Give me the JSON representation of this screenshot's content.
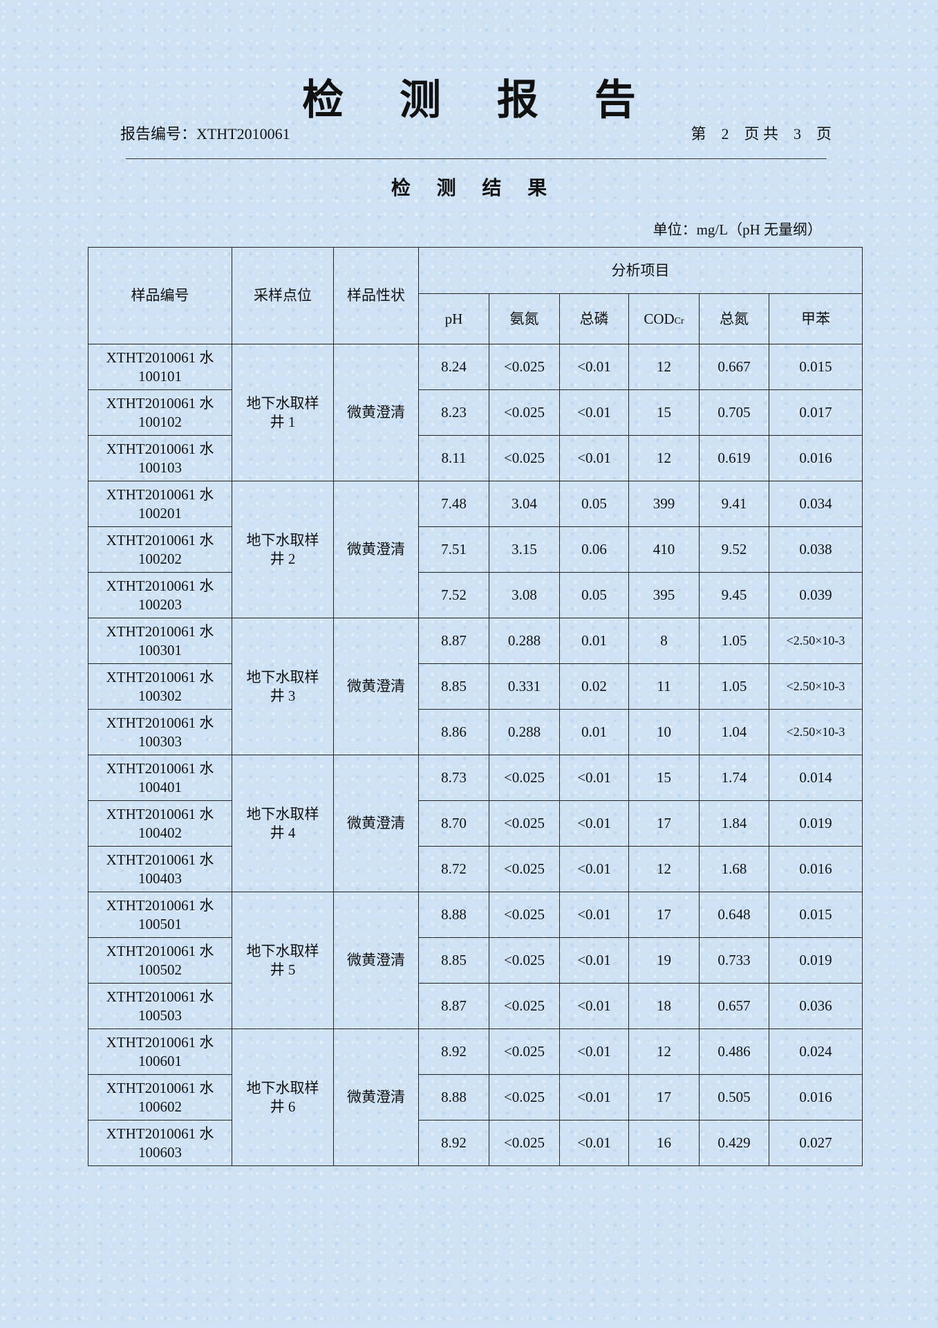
{
  "title": "检 测 报 告",
  "report_no_label": "报告编号：XTHT2010061",
  "page_info": "第　2　页 共　3　页",
  "section_title": "检 测 结 果",
  "unit": "单位：mg/L（pH 无量纲）",
  "table": {
    "headers": {
      "sample_id": "样品编号",
      "location": "采样点位",
      "appearance": "样品性状",
      "analysis": "分析项目",
      "items": [
        "pH",
        "氨氮",
        "总磷",
        "COD",
        "总氮",
        "甲苯"
      ],
      "cod_subscript": "Cr"
    },
    "groups": [
      {
        "location": "地下水取样井 1",
        "appearance": "微黄澄清",
        "rows": [
          {
            "id": "XTHT2010061 水 100101",
            "v": [
              "8.24",
              "<0.025",
              "<0.01",
              "12",
              "0.667",
              "0.015"
            ]
          },
          {
            "id": "XTHT2010061 水 100102",
            "v": [
              "8.23",
              "<0.025",
              "<0.01",
              "15",
              "0.705",
              "0.017"
            ]
          },
          {
            "id": "XTHT2010061 水 100103",
            "v": [
              "8.11",
              "<0.025",
              "<0.01",
              "12",
              "0.619",
              "0.016"
            ]
          }
        ]
      },
      {
        "location": "地下水取样井 2",
        "appearance": "微黄澄清",
        "rows": [
          {
            "id": "XTHT2010061 水 100201",
            "v": [
              "7.48",
              "3.04",
              "0.05",
              "399",
              "9.41",
              "0.034"
            ]
          },
          {
            "id": "XTHT2010061 水 100202",
            "v": [
              "7.51",
              "3.15",
              "0.06",
              "410",
              "9.52",
              "0.038"
            ]
          },
          {
            "id": "XTHT2010061 水 100203",
            "v": [
              "7.52",
              "3.08",
              "0.05",
              "395",
              "9.45",
              "0.039"
            ]
          }
        ]
      },
      {
        "location": "地下水取样井 3",
        "appearance": "微黄澄清",
        "rows": [
          {
            "id": "XTHT2010061 水 100301",
            "v": [
              "8.87",
              "0.288",
              "0.01",
              "8",
              "1.05",
              "<2.50×10-3"
            ]
          },
          {
            "id": "XTHT2010061 水 100302",
            "v": [
              "8.85",
              "0.331",
              "0.02",
              "11",
              "1.05",
              "<2.50×10-3"
            ]
          },
          {
            "id": "XTHT2010061 水 100303",
            "v": [
              "8.86",
              "0.288",
              "0.01",
              "10",
              "1.04",
              "<2.50×10-3"
            ]
          }
        ]
      },
      {
        "location": "地下水取样井 4",
        "appearance": "微黄澄清",
        "rows": [
          {
            "id": "XTHT2010061 水 100401",
            "v": [
              "8.73",
              "<0.025",
              "<0.01",
              "15",
              "1.74",
              "0.014"
            ]
          },
          {
            "id": "XTHT2010061 水 100402",
            "v": [
              "8.70",
              "<0.025",
              "<0.01",
              "17",
              "1.84",
              "0.019"
            ]
          },
          {
            "id": "XTHT2010061 水 100403",
            "v": [
              "8.72",
              "<0.025",
              "<0.01",
              "12",
              "1.68",
              "0.016"
            ]
          }
        ]
      },
      {
        "location": "地下水取样井 5",
        "appearance": "微黄澄清",
        "rows": [
          {
            "id": "XTHT2010061 水 100501",
            "v": [
              "8.88",
              "<0.025",
              "<0.01",
              "17",
              "0.648",
              "0.015"
            ]
          },
          {
            "id": "XTHT2010061 水 100502",
            "v": [
              "8.85",
              "<0.025",
              "<0.01",
              "19",
              "0.733",
              "0.019"
            ]
          },
          {
            "id": "XTHT2010061 水 100503",
            "v": [
              "8.87",
              "<0.025",
              "<0.01",
              "18",
              "0.657",
              "0.036"
            ]
          }
        ]
      },
      {
        "location": "地下水取样井 6",
        "appearance": "微黄澄清",
        "rows": [
          {
            "id": "XTHT2010061 水 100601",
            "v": [
              "8.92",
              "<0.025",
              "<0.01",
              "12",
              "0.486",
              "0.024"
            ]
          },
          {
            "id": "XTHT2010061 水 100602",
            "v": [
              "8.88",
              "<0.025",
              "<0.01",
              "17",
              "0.505",
              "0.016"
            ]
          },
          {
            "id": "XTHT2010061 水 100603",
            "v": [
              "8.92",
              "<0.025",
              "<0.01",
              "16",
              "0.429",
              "0.027"
            ]
          }
        ]
      }
    ]
  }
}
